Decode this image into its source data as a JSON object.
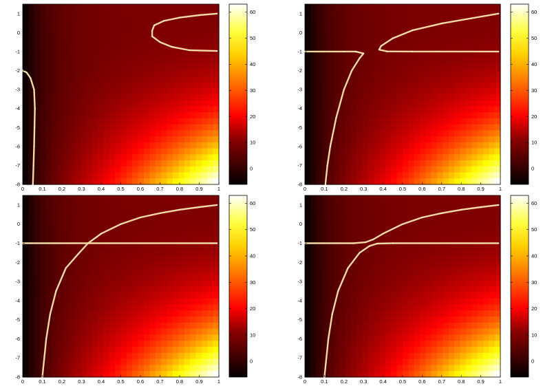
{
  "chart_data": [
    {
      "type": "heatmap",
      "title": "",
      "xlabel": "",
      "ylabel": "",
      "xlim": [
        0,
        1
      ],
      "ylim": [
        -8,
        1.5
      ],
      "xticks": [
        "0",
        "0.1",
        "0.2",
        "0.3",
        "0.4",
        "0.5",
        "0.6",
        "0.7",
        "0.8",
        "0.9",
        "1"
      ],
      "yticks": [
        "1",
        "0",
        "-1",
        "-2",
        "-3",
        "-4",
        "-5",
        "-6",
        "-7",
        "-8"
      ],
      "colorbar": {
        "colormap": "hot",
        "range": [
          -6,
          63
        ],
        "ticks": [
          "60",
          "50",
          "40",
          "30",
          "20",
          "10",
          "0"
        ]
      },
      "series": [
        {
          "values": [
            [
              0.99,
              1.0
            ],
            [
              0.9,
              0.92
            ],
            [
              0.8,
              0.79
            ],
            [
              0.72,
              0.62
            ],
            [
              0.67,
              0.38
            ],
            [
              0.66,
              0.1
            ],
            [
              0.66,
              -0.2
            ],
            [
              0.7,
              -0.5
            ],
            [
              0.76,
              -0.75
            ],
            [
              0.85,
              -0.93
            ],
            [
              0.99,
              -0.97
            ]
          ]
        },
        {
          "values": [
            [
              0.0,
              -2.0
            ],
            [
              0.02,
              -2.1
            ],
            [
              0.04,
              -2.4
            ],
            [
              0.058,
              -3.0
            ],
            [
              0.062,
              -4.0
            ],
            [
              0.06,
              -5.0
            ],
            [
              0.058,
              -6.0
            ],
            [
              0.055,
              -7.0
            ],
            [
              0.052,
              -8.0
            ]
          ]
        }
      ]
    },
    {
      "type": "heatmap",
      "title": "",
      "xlabel": "",
      "ylabel": "",
      "xlim": [
        0,
        1
      ],
      "ylim": [
        -8,
        1.5
      ],
      "xticks": [
        "0",
        "0.1",
        "0.2",
        "0.3",
        "0.4",
        "0.5",
        "0.6",
        "0.7",
        "0.8",
        "0.9",
        "1"
      ],
      "yticks": [
        "1",
        "0",
        "-1",
        "-2",
        "-3",
        "-4",
        "-5",
        "-6",
        "-7",
        "-8"
      ],
      "colorbar": {
        "colormap": "hot",
        "range": [
          -6,
          63
        ],
        "ticks": [
          "60",
          "50",
          "40",
          "30",
          "20",
          "10",
          "0"
        ]
      },
      "series": [
        {
          "values": [
            [
              0.0,
              -1.0
            ],
            [
              0.2,
              -1.0
            ],
            [
              0.26,
              -1.0
            ],
            [
              0.3,
              -1.1
            ],
            [
              0.28,
              -1.35
            ],
            [
              0.24,
              -2.0
            ],
            [
              0.2,
              -3.0
            ],
            [
              0.16,
              -4.5
            ],
            [
              0.13,
              -6.0
            ],
            [
              0.115,
              -7.0
            ],
            [
              0.105,
              -8.0
            ]
          ]
        },
        {
          "values": [
            [
              0.99,
              1.0
            ],
            [
              0.85,
              0.75
            ],
            [
              0.7,
              0.48
            ],
            [
              0.55,
              0.12
            ],
            [
              0.45,
              -0.3
            ],
            [
              0.39,
              -0.7
            ],
            [
              0.38,
              -0.9
            ],
            [
              0.42,
              -0.99
            ],
            [
              0.55,
              -1.0
            ],
            [
              0.99,
              -1.0
            ]
          ]
        }
      ]
    },
    {
      "type": "heatmap",
      "title": "",
      "xlabel": "",
      "ylabel": "",
      "xlim": [
        0,
        1
      ],
      "ylim": [
        -8,
        1.5
      ],
      "xticks": [
        "0",
        "0.1",
        "0.2",
        "0.3",
        "0.4",
        "0.5",
        "0.6",
        "0.7",
        "0.8",
        "0.9",
        "1"
      ],
      "yticks": [
        "1",
        "0",
        "-1",
        "-2",
        "-3",
        "-4",
        "-5",
        "-6",
        "-7",
        "-8"
      ],
      "colorbar": {
        "colormap": "hot",
        "range": [
          -6,
          63
        ],
        "ticks": [
          "60",
          "50",
          "40",
          "30",
          "20",
          "10",
          "0"
        ]
      },
      "series": [
        {
          "values": [
            [
              0.0,
              -1.0
            ],
            [
              0.99,
              -1.0
            ]
          ]
        },
        {
          "values": [
            [
              0.1,
              -8.0
            ],
            [
              0.12,
              -6.0
            ],
            [
              0.14,
              -4.7
            ],
            [
              0.17,
              -3.5
            ],
            [
              0.22,
              -2.3
            ],
            [
              0.28,
              -1.6
            ],
            [
              0.333,
              -1.0
            ],
            [
              0.4,
              -0.5
            ],
            [
              0.5,
              0.0
            ],
            [
              0.6,
              0.35
            ],
            [
              0.7,
              0.57
            ],
            [
              0.8,
              0.75
            ],
            [
              0.9,
              0.89
            ],
            [
              0.99,
              1.0
            ]
          ]
        }
      ]
    },
    {
      "type": "heatmap",
      "title": "",
      "xlabel": "",
      "ylabel": "",
      "xlim": [
        0,
        1
      ],
      "ylim": [
        -8,
        1.5
      ],
      "xticks": [
        "0",
        "0.1",
        "0.2",
        "0.3",
        "0.4",
        "0.5",
        "0.6",
        "0.7",
        "0.8",
        "0.9",
        "1"
      ],
      "yticks": [
        "1",
        "0",
        "-1",
        "-2",
        "-3",
        "-4",
        "-5",
        "-6",
        "-7",
        "-8"
      ],
      "colorbar": {
        "colormap": "hot",
        "range": [
          -6,
          63
        ],
        "ticks": [
          "60",
          "50",
          "40",
          "30",
          "20",
          "10",
          "0"
        ]
      },
      "series": [
        {
          "values": [
            [
              0.0,
              -1.0
            ],
            [
              0.25,
              -1.0
            ],
            [
              0.31,
              -0.95
            ],
            [
              0.35,
              -0.8
            ],
            [
              0.4,
              -0.5
            ],
            [
              0.5,
              0.0
            ],
            [
              0.6,
              0.35
            ],
            [
              0.7,
              0.57
            ],
            [
              0.8,
              0.75
            ],
            [
              0.9,
              0.89
            ],
            [
              0.99,
              1.0
            ]
          ]
        },
        {
          "values": [
            [
              0.1,
              -8.0
            ],
            [
              0.12,
              -6.0
            ],
            [
              0.14,
              -4.7
            ],
            [
              0.17,
              -3.5
            ],
            [
              0.22,
              -2.3
            ],
            [
              0.28,
              -1.5
            ],
            [
              0.33,
              -1.15
            ],
            [
              0.37,
              -1.02
            ],
            [
              0.45,
              -1.0
            ],
            [
              0.99,
              -1.0
            ]
          ]
        }
      ]
    }
  ]
}
